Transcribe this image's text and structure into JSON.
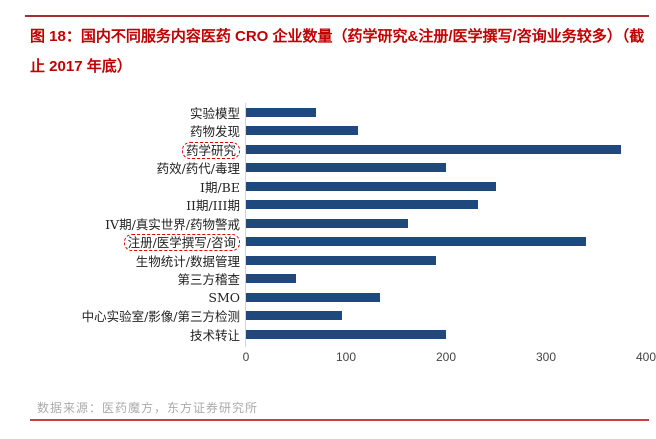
{
  "header": {
    "title_lines": [
      "图 18：国内不同服务内容医药 CRO 企业数量（药学研究&注册/医学撰写/咨询业务较多）（截",
      "止 2017 年底）"
    ]
  },
  "chart_data": {
    "type": "bar",
    "orientation": "horizontal",
    "title": "国内不同服务内容医药 CRO 企业数量（截止 2017 年底）",
    "categories": [
      "实验模型",
      "药物发现",
      "药学研究",
      "药效/药代/毒理",
      "I期/BE",
      "II期/III期",
      "IV期/真实世界/药物警戒",
      "注册/医学撰写/咨询",
      "生物统计/数据管理",
      "第三方稽查",
      "SMO",
      "中心实验室/影像/第三方检测",
      "技术转让"
    ],
    "values": [
      70,
      112,
      375,
      200,
      250,
      232,
      162,
      340,
      190,
      50,
      134,
      96,
      200
    ],
    "highlighted_indexes": [
      2,
      7
    ],
    "x_ticks": [
      0,
      100,
      200,
      300,
      400
    ],
    "xlim": [
      0,
      400
    ],
    "xlabel": "",
    "ylabel": "",
    "grid": false,
    "legend": false,
    "bar_color": "#1F497D",
    "highlight_box_color": "#E60000"
  },
  "footer": {
    "source_text": "数据来源：医药魔方，东方证券研究所"
  },
  "colors": {
    "title_red": "#C00000",
    "top_rule": "#A03030",
    "bottom_rule": "#C84040",
    "bar": "#1F497D",
    "axis_label": "#444444",
    "source_gray": "#ABABAB"
  }
}
